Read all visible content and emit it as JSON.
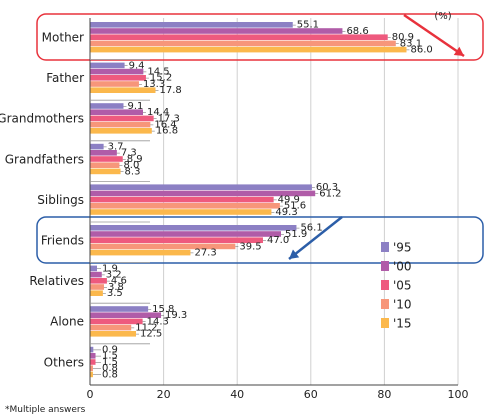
{
  "chart_data": {
    "type": "bar",
    "orientation": "horizontal",
    "unit": "(%)",
    "footnote": "*Multiple answers",
    "xlim": [
      0,
      100
    ],
    "x_ticks": [
      0,
      20,
      40,
      60,
      80,
      100
    ],
    "grid": true,
    "legend_position": "right",
    "categories": [
      "Mother",
      "Father",
      "Grandmothers",
      "Grandfathers",
      "Siblings",
      "Friends",
      "Relatives",
      "Alone",
      "Others"
    ],
    "series": [
      {
        "name": "'95",
        "color": "#8c80c4",
        "values": [
          55.1,
          9.4,
          9.1,
          3.7,
          60.3,
          56.1,
          1.9,
          15.8,
          0.9
        ]
      },
      {
        "name": "'00",
        "color": "#b05ca8",
        "values": [
          68.6,
          14.5,
          14.4,
          7.3,
          61.2,
          51.9,
          3.2,
          19.3,
          1.5
        ]
      },
      {
        "name": "'05",
        "color": "#ee5a7e",
        "values": [
          80.9,
          15.2,
          17.3,
          8.9,
          49.9,
          47.0,
          4.6,
          14.3,
          1.5
        ]
      },
      {
        "name": "'10",
        "color": "#f7967a",
        "values": [
          83.1,
          13.3,
          16.4,
          8.0,
          51.6,
          39.5,
          3.8,
          11.2,
          0.8
        ]
      },
      {
        "name": "'15",
        "color": "#fbb84c",
        "values": [
          86.0,
          17.8,
          16.8,
          8.3,
          49.3,
          27.3,
          3.5,
          12.5,
          0.8
        ]
      }
    ],
    "highlights": [
      {
        "category": "Mother",
        "box_color": "#e8323c",
        "arrow_color": "#e8323c",
        "trend": "up"
      },
      {
        "category": "Friends",
        "box_color": "#2c5ea8",
        "arrow_color": "#2c5ea8",
        "trend": "down"
      }
    ]
  }
}
